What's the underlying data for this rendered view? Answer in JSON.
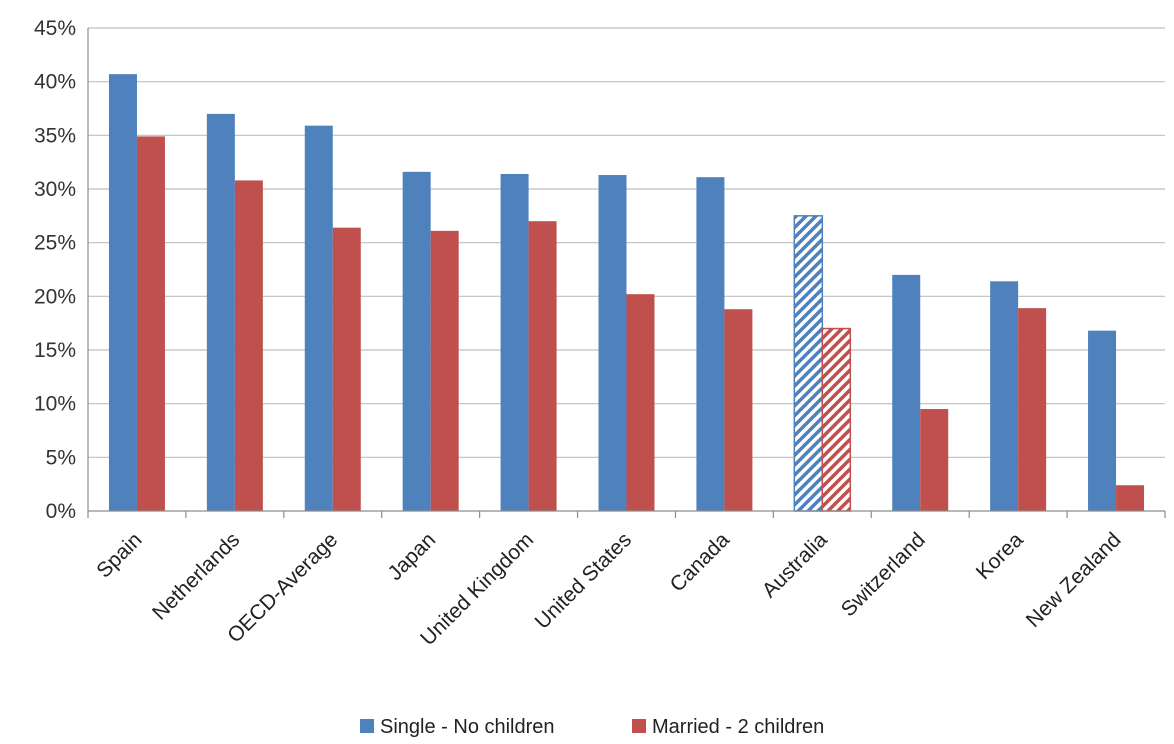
{
  "chart_data": {
    "type": "bar",
    "title": "",
    "xlabel": "",
    "ylabel": "",
    "categories": [
      "Spain",
      "Netherlands",
      "OECD-Average",
      "Japan",
      "United Kingdom",
      "United States",
      "Canada",
      "Australia",
      "Switzerland",
      "Korea",
      "New Zealand"
    ],
    "series": [
      {
        "name": "Single - No children",
        "color": "#4f81bd",
        "values": [
          40.7,
          37.0,
          35.9,
          31.6,
          31.4,
          31.3,
          31.1,
          27.5,
          22.0,
          21.4,
          16.8
        ]
      },
      {
        "name": "Married - 2 children",
        "color": "#c0504d",
        "values": [
          34.9,
          30.8,
          26.4,
          26.1,
          27.0,
          20.2,
          18.8,
          17.0,
          9.5,
          18.9,
          2.4
        ]
      }
    ],
    "highlight_category": "Australia",
    "highlight_pattern": "diagonal-hatch",
    "ylim": [
      0,
      45
    ],
    "ytick_step": 5,
    "ytick_format": "percent",
    "grid": true,
    "legend_position": "bottom"
  }
}
